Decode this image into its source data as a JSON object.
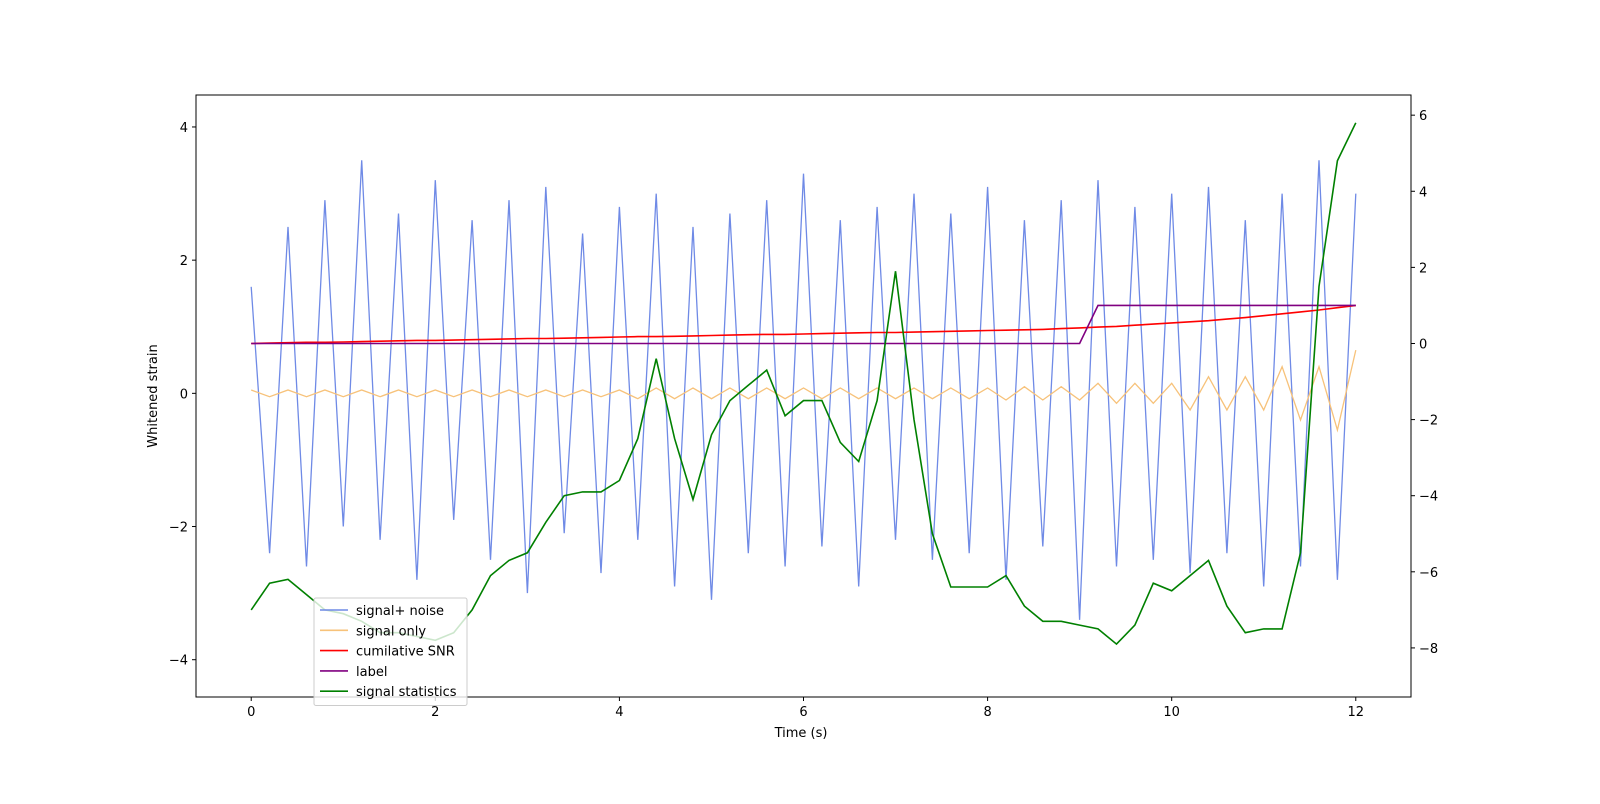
{
  "chart_data": {
    "type": "line",
    "xlabel": "Time (s)",
    "ylabel": "Whitened strain",
    "x": [
      0,
      0.2,
      0.4,
      0.6,
      0.8,
      1,
      1.2,
      1.4,
      1.6,
      1.8,
      2,
      2.2,
      2.4,
      2.6,
      2.8,
      3,
      3.2,
      3.4,
      3.6,
      3.8,
      4,
      4.2,
      4.4,
      4.6,
      4.8,
      5,
      5.2,
      5.4,
      5.6,
      5.8,
      6,
      6.2,
      6.4,
      6.6,
      6.8,
      7,
      7.2,
      7.4,
      7.6,
      7.8,
      8,
      8.2,
      8.4,
      8.6,
      8.8,
      9,
      9.2,
      9.4,
      9.6,
      9.8,
      10,
      10.2,
      10.4,
      10.6,
      10.8,
      11,
      11.2,
      11.4,
      11.6,
      11.8,
      12
    ],
    "series": [
      {
        "name": "signal+ noise",
        "color": "#6f8ae6",
        "axis": "y",
        "values": [
          1.6,
          -2.4,
          2.5,
          -2.6,
          2.9,
          -2.0,
          3.5,
          -2.2,
          2.7,
          -2.8,
          3.2,
          -1.9,
          2.6,
          -2.5,
          2.9,
          -3.0,
          3.1,
          -2.1,
          2.4,
          -2.7,
          2.8,
          -2.2,
          3.0,
          -2.9,
          2.5,
          -3.1,
          2.7,
          -2.4,
          2.9,
          -2.6,
          3.3,
          -2.3,
          2.6,
          -2.9,
          2.8,
          -2.2,
          3.0,
          -2.5,
          2.7,
          -2.4,
          3.1,
          -2.8,
          2.6,
          -2.3,
          2.9,
          -3.4,
          3.2,
          -2.6,
          2.8,
          -2.5,
          3.0,
          -2.7,
          3.1,
          -2.4,
          2.6,
          -2.9,
          3.0,
          -2.6,
          3.5,
          -2.8,
          3.0
        ]
      },
      {
        "name": "signal only",
        "color": "#f7c27a",
        "axis": "y",
        "values": [
          0.05,
          -0.05,
          0.05,
          -0.05,
          0.05,
          -0.05,
          0.05,
          -0.05,
          0.05,
          -0.05,
          0.05,
          -0.05,
          0.05,
          -0.05,
          0.05,
          -0.05,
          0.05,
          -0.05,
          0.05,
          -0.05,
          0.05,
          -0.08,
          0.08,
          -0.08,
          0.08,
          -0.08,
          0.08,
          -0.08,
          0.08,
          -0.08,
          0.08,
          -0.08,
          0.08,
          -0.08,
          0.08,
          -0.08,
          0.08,
          -0.08,
          0.08,
          -0.08,
          0.08,
          -0.1,
          0.1,
          -0.1,
          0.1,
          -0.1,
          0.15,
          -0.15,
          0.15,
          -0.15,
          0.15,
          -0.25,
          0.25,
          -0.25,
          0.25,
          -0.25,
          0.4,
          -0.4,
          0.4,
          -0.55,
          0.65
        ]
      },
      {
        "name": "cumilative SNR",
        "color": "red",
        "axis": "y2",
        "values": [
          0,
          0.01,
          0.02,
          0.03,
          0.03,
          0.04,
          0.05,
          0.06,
          0.07,
          0.08,
          0.08,
          0.09,
          0.1,
          0.11,
          0.12,
          0.13,
          0.13,
          0.14,
          0.15,
          0.16,
          0.17,
          0.18,
          0.18,
          0.19,
          0.2,
          0.21,
          0.22,
          0.23,
          0.24,
          0.24,
          0.25,
          0.26,
          0.27,
          0.28,
          0.29,
          0.29,
          0.3,
          0.31,
          0.32,
          0.33,
          0.34,
          0.35,
          0.36,
          0.37,
          0.39,
          0.41,
          0.43,
          0.45,
          0.48,
          0.51,
          0.54,
          0.57,
          0.6,
          0.64,
          0.68,
          0.73,
          0.78,
          0.83,
          0.88,
          0.94,
          1.0
        ]
      },
      {
        "name": "label",
        "color": "purple",
        "axis": "y2",
        "values": [
          0,
          0,
          0,
          0,
          0,
          0,
          0,
          0,
          0,
          0,
          0,
          0,
          0,
          0,
          0,
          0,
          0,
          0,
          0,
          0,
          0,
          0,
          0,
          0,
          0,
          0,
          0,
          0,
          0,
          0,
          0,
          0,
          0,
          0,
          0,
          0,
          0,
          0,
          0,
          0,
          0,
          0,
          0,
          0,
          0,
          0,
          1,
          1,
          1,
          1,
          1,
          1,
          1,
          1,
          1,
          1,
          1,
          1,
          1,
          1,
          1
        ]
      },
      {
        "name": "signal statistics",
        "color": "green",
        "axis": "y2",
        "values": [
          -7.0,
          -6.3,
          -6.2,
          -6.6,
          -7.0,
          -7.1,
          -7.3,
          -7.6,
          -7.6,
          -7.7,
          -7.8,
          -7.6,
          -7.0,
          -6.1,
          -5.7,
          -5.5,
          -4.7,
          -4.0,
          -3.9,
          -3.9,
          -3.6,
          -2.5,
          -0.4,
          -2.5,
          -4.1,
          -2.4,
          -1.5,
          -1.1,
          -0.7,
          -1.9,
          -1.5,
          -1.5,
          -2.6,
          -3.1,
          -1.5,
          1.9,
          -2.0,
          -5.0,
          -6.4,
          -6.4,
          -6.4,
          -6.1,
          -6.9,
          -7.3,
          -7.3,
          -7.4,
          -7.5,
          -7.9,
          -7.4,
          -6.3,
          -6.5,
          -6.1,
          -5.7,
          -6.9,
          -7.6,
          -7.5,
          -7.5,
          -5.5,
          1.5,
          4.8,
          5.8
        ]
      }
    ],
    "xlim": [
      -0.6,
      12.6
    ],
    "xticks": [
      0,
      2,
      4,
      6,
      8,
      10,
      12
    ],
    "ylim": [
      -4.56,
      4.48
    ],
    "yticks": [
      {
        "value": -4,
        "label": "−4"
      },
      {
        "value": -2,
        "label": "−2"
      },
      0,
      2,
      4
    ],
    "y2lim": [
      -9.29,
      6.53
    ],
    "y2ticks": [
      {
        "value": -8,
        "label": "−8"
      },
      {
        "value": -6,
        "label": "−6"
      },
      {
        "value": -4,
        "label": "−4"
      },
      {
        "value": -2,
        "label": "−2"
      },
      0,
      2,
      4,
      6
    ],
    "legend": "lower left"
  }
}
